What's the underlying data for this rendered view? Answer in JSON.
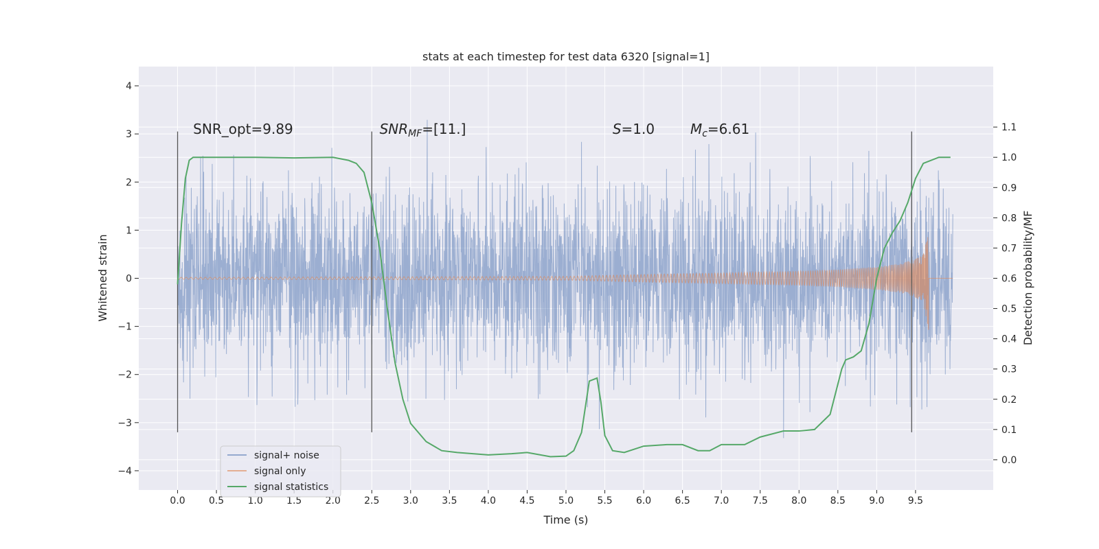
{
  "chart_data": {
    "type": "line",
    "title": "stats at each timestep for test data 6320 [signal=1]",
    "xlabel": "Time (s)",
    "ylabel": "Whitened strain",
    "y2label": "Detection probability/MF",
    "xlim": [
      -0.5,
      10.5
    ],
    "ylim": [
      -4.4,
      4.4
    ],
    "y2lim": [
      -0.1,
      1.3
    ],
    "xticks": [
      0.0,
      0.5,
      1.0,
      1.5,
      2.0,
      2.5,
      3.0,
      3.5,
      4.0,
      4.5,
      5.0,
      5.5,
      6.0,
      6.5,
      7.0,
      7.5,
      8.0,
      8.5,
      9.0,
      9.5
    ],
    "xtick_labels": [
      "0.0",
      "0.5",
      "1.0",
      "1.5",
      "2.0",
      "2.5",
      "3.0",
      "3.5",
      "4.0",
      "4.5",
      "5.0",
      "5.5",
      "6.0",
      "6.5",
      "7.0",
      "7.5",
      "8.0",
      "8.5",
      "9.0",
      "9.5"
    ],
    "yticks": [
      -4,
      -3,
      -2,
      -1,
      0,
      1,
      2,
      3,
      4
    ],
    "ytick_labels": [
      "−4",
      "−3",
      "−2",
      "−1",
      "0",
      "1",
      "2",
      "3",
      "4"
    ],
    "y2ticks": [
      0.0,
      0.1,
      0.2,
      0.3,
      0.4,
      0.5,
      0.6,
      0.7,
      0.8,
      0.9,
      1.0,
      1.1
    ],
    "y2tick_labels": [
      "0.0",
      "0.1",
      "0.2",
      "0.3",
      "0.4",
      "0.5",
      "0.6",
      "0.7",
      "0.8",
      "0.9",
      "1.0",
      "1.1"
    ],
    "grid": true,
    "legend_position": "lower-left",
    "colors": {
      "background": "#eaeaf2",
      "grid": "#ffffff",
      "noise": "#4c72b0",
      "signal": "#dd8452",
      "stats": "#55a868",
      "marker": "#555555"
    },
    "annotations": [
      {
        "text": "SNR_opt=9.89",
        "x": 0.2,
        "y": 3.0
      },
      {
        "text": "SNR",
        "sub": "MF",
        "suffix": "=[11.]",
        "italic": true,
        "x": 2.6,
        "y": 3.0
      },
      {
        "text": "S",
        "suffix": "=1.0",
        "italic": true,
        "x": 5.6,
        "y": 3.0
      },
      {
        "text": "M",
        "sub": "c",
        "suffix": "=6.61",
        "italic": true,
        "x": 6.6,
        "y": 3.0
      }
    ],
    "vertical_markers": [
      {
        "x": 0.0,
        "ymin": -3.2,
        "ymax": 3.05
      },
      {
        "x": 2.5,
        "ymin": -3.2,
        "ymax": 3.05
      },
      {
        "x": 9.45,
        "ymin": -3.2,
        "ymax": 3.05
      }
    ],
    "series": [
      {
        "name": "signal+ noise",
        "kind": "noise",
        "axis": "left",
        "x_start": 0.0,
        "x_end": 9.98,
        "approx_std": 0.95,
        "approx_min": -4.0,
        "approx_max": 3.9
      },
      {
        "name": "signal only",
        "kind": "chirp",
        "axis": "left",
        "x_start": 0.0,
        "x_end": 9.98,
        "merger_time": 9.67,
        "peak_amplitude": 1.1,
        "envelope": {
          "t": [
            0.0,
            5.0,
            6.0,
            7.0,
            8.0,
            8.5,
            9.0,
            9.3,
            9.5,
            9.6,
            9.67
          ],
          "amp": [
            0.02,
            0.04,
            0.08,
            0.11,
            0.15,
            0.18,
            0.24,
            0.3,
            0.4,
            0.5,
            1.1
          ]
        }
      },
      {
        "name": "signal statistics",
        "kind": "line",
        "axis": "right",
        "x": [
          0.0,
          0.05,
          0.1,
          0.15,
          0.2,
          0.3,
          0.5,
          1.0,
          1.5,
          2.0,
          2.2,
          2.3,
          2.4,
          2.5,
          2.6,
          2.7,
          2.8,
          2.9,
          3.0,
          3.2,
          3.4,
          3.6,
          4.0,
          4.3,
          4.5,
          4.8,
          5.0,
          5.1,
          5.2,
          5.3,
          5.4,
          5.45,
          5.5,
          5.6,
          5.75,
          6.0,
          6.3,
          6.5,
          6.7,
          6.85,
          7.0,
          7.15,
          7.3,
          7.5,
          7.8,
          8.0,
          8.2,
          8.4,
          8.55,
          8.6,
          8.7,
          8.8,
          8.9,
          9.0,
          9.1,
          9.2,
          9.3,
          9.4,
          9.5,
          9.6,
          9.8,
          9.95
        ],
        "values": [
          0.58,
          0.78,
          0.93,
          0.99,
          1.0,
          1.0,
          1.0,
          1.0,
          0.998,
          1.0,
          0.99,
          0.98,
          0.95,
          0.85,
          0.7,
          0.5,
          0.32,
          0.2,
          0.12,
          0.06,
          0.03,
          0.024,
          0.016,
          0.02,
          0.024,
          0.01,
          0.012,
          0.03,
          0.09,
          0.26,
          0.27,
          0.19,
          0.08,
          0.03,
          0.024,
          0.045,
          0.05,
          0.05,
          0.03,
          0.03,
          0.05,
          0.05,
          0.05,
          0.075,
          0.095,
          0.095,
          0.1,
          0.15,
          0.3,
          0.33,
          0.34,
          0.36,
          0.45,
          0.6,
          0.7,
          0.75,
          0.79,
          0.85,
          0.93,
          0.98,
          1.0,
          1.0
        ]
      }
    ]
  }
}
